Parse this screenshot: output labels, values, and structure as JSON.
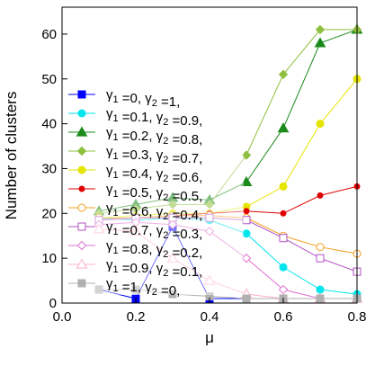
{
  "chart_data": {
    "type": "line",
    "xlabel": "μ",
    "ylabel": "Number of clusters",
    "xlim": [
      0.0,
      0.8
    ],
    "ylim": [
      0,
      66
    ],
    "xticks": [
      "0.0",
      "0.2",
      "0.4",
      "0.6",
      "0.8"
    ],
    "yticks": [
      "0",
      "10",
      "20",
      "30",
      "40",
      "50",
      "60"
    ],
    "grid": false,
    "legend_placement": "left",
    "x": [
      0.1,
      0.2,
      0.3,
      0.4,
      0.5,
      0.6,
      0.7,
      0.8
    ],
    "series": [
      {
        "name": "γ1 =0, γ2 =1,",
        "color": "#0000ff",
        "marker": "square",
        "values": [
          3,
          1,
          17,
          1,
          1,
          1,
          1,
          1
        ]
      },
      {
        "name": "γ1 =0.1, γ2 =0.9,",
        "color": "#00e5ee",
        "marker": "circle",
        "values": [
          19,
          18.5,
          19,
          18.5,
          15.5,
          8,
          3,
          2
        ]
      },
      {
        "name": "γ1 =0.2, γ2 =0.8,",
        "color": "#1a8a1a",
        "marker": "triangle",
        "values": [
          20.5,
          22,
          23.5,
          23,
          27,
          39,
          58,
          61
        ]
      },
      {
        "name": "γ1 =0.3, γ2 =0.7,",
        "color": "#8fbf3f",
        "marker": "diamond",
        "values": [
          20,
          21,
          22,
          22,
          33,
          51,
          61,
          61
        ]
      },
      {
        "name": "γ1 =0.4, γ2 =0.6,",
        "color": "#e5e500",
        "marker": "circle",
        "values": [
          19,
          19.5,
          20,
          20,
          21.5,
          26,
          40,
          50
        ]
      },
      {
        "name": "γ1 =0.5, γ2 =0.5,",
        "color": "#e00000",
        "marker": "dot",
        "values": [
          18.5,
          19,
          19.5,
          20,
          20.5,
          20,
          24,
          26
        ]
      },
      {
        "name": "γ1 =0.6, γ2 =0.4,",
        "color": "#f0a020",
        "marker": "circle-open",
        "values": [
          19,
          19,
          19.5,
          19.5,
          19,
          15,
          12.5,
          11
        ]
      },
      {
        "name": "γ1 =0.7, γ2 =0.3,",
        "color": "#b050c0",
        "marker": "square-open",
        "values": [
          18.5,
          19,
          19,
          19,
          18.5,
          14.5,
          10,
          7
        ]
      },
      {
        "name": "γ1 =0.8, γ2 =0.2,",
        "color": "#e070d0",
        "marker": "diamond-open",
        "values": [
          17.5,
          18,
          17.5,
          16,
          10,
          3,
          1,
          1
        ]
      },
      {
        "name": "γ1 =0.9, γ2 =0.1,",
        "color": "#ffb0c8",
        "marker": "triangle-open",
        "values": [
          16.5,
          16,
          10,
          5,
          2,
          1,
          1,
          1
        ]
      },
      {
        "name": "γ1 =1, γ2 =0,",
        "color": "#b0b0b0",
        "marker": "square",
        "values": [
          3,
          3,
          2,
          1.5,
          1,
          1,
          1,
          1
        ]
      }
    ],
    "legend": [
      {
        "g1": "0",
        "g2": "1"
      },
      {
        "g1": "0.1",
        "g2": "0.9"
      },
      {
        "g1": "0.2",
        "g2": "0.8"
      },
      {
        "g1": "0.3",
        "g2": "0.7"
      },
      {
        "g1": "0.4",
        "g2": "0.6"
      },
      {
        "g1": "0.5",
        "g2": "0.5"
      },
      {
        "g1": "0.6",
        "g2": "0.4"
      },
      {
        "g1": "0.7",
        "g2": "0.3"
      },
      {
        "g1": "0.8",
        "g2": "0.2"
      },
      {
        "g1": "0.9",
        "g2": "0.1"
      },
      {
        "g1": "1",
        "g2": "0"
      }
    ]
  }
}
